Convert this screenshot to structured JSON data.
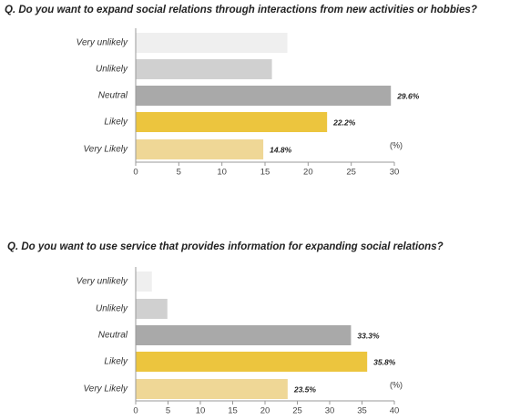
{
  "chart_data": [
    {
      "type": "barh",
      "title": "Q. Do you want to expand social relations through interactions from new activities or hobbies?",
      "categories": [
        "Very unlikely",
        "Unlikely",
        "Neutral",
        "Likely",
        "Very Likely"
      ],
      "values": [
        17.6,
        15.8,
        29.6,
        22.2,
        14.8
      ],
      "value_labels": [
        null,
        null,
        "29.6%",
        "22.2%",
        "14.8%"
      ],
      "colors": [
        "#efefef",
        "#d0d0d0",
        "#a9a9a9",
        "#ecc53e",
        "#efd796"
      ],
      "unit_label": "(%)",
      "xlim": [
        0,
        30
      ],
      "xticks": [
        0,
        5,
        10,
        15,
        20,
        25,
        30
      ]
    },
    {
      "type": "barh",
      "title": "Q. Do you want to use service that provides information for expanding social relations?",
      "categories": [
        "Very unlikely",
        "Unlikely",
        "Neutral",
        "Likely",
        "Very Likely"
      ],
      "values": [
        2.5,
        4.9,
        33.3,
        35.8,
        23.5
      ],
      "value_labels": [
        null,
        null,
        "33.3%",
        "35.8%",
        "23.5%"
      ],
      "colors": [
        "#efefef",
        "#d0d0d0",
        "#a9a9a9",
        "#ecc53e",
        "#efd796"
      ],
      "unit_label": "(%)",
      "xlim": [
        0,
        40
      ],
      "xticks": [
        0,
        5,
        10,
        15,
        20,
        25,
        30,
        35,
        40
      ]
    }
  ]
}
